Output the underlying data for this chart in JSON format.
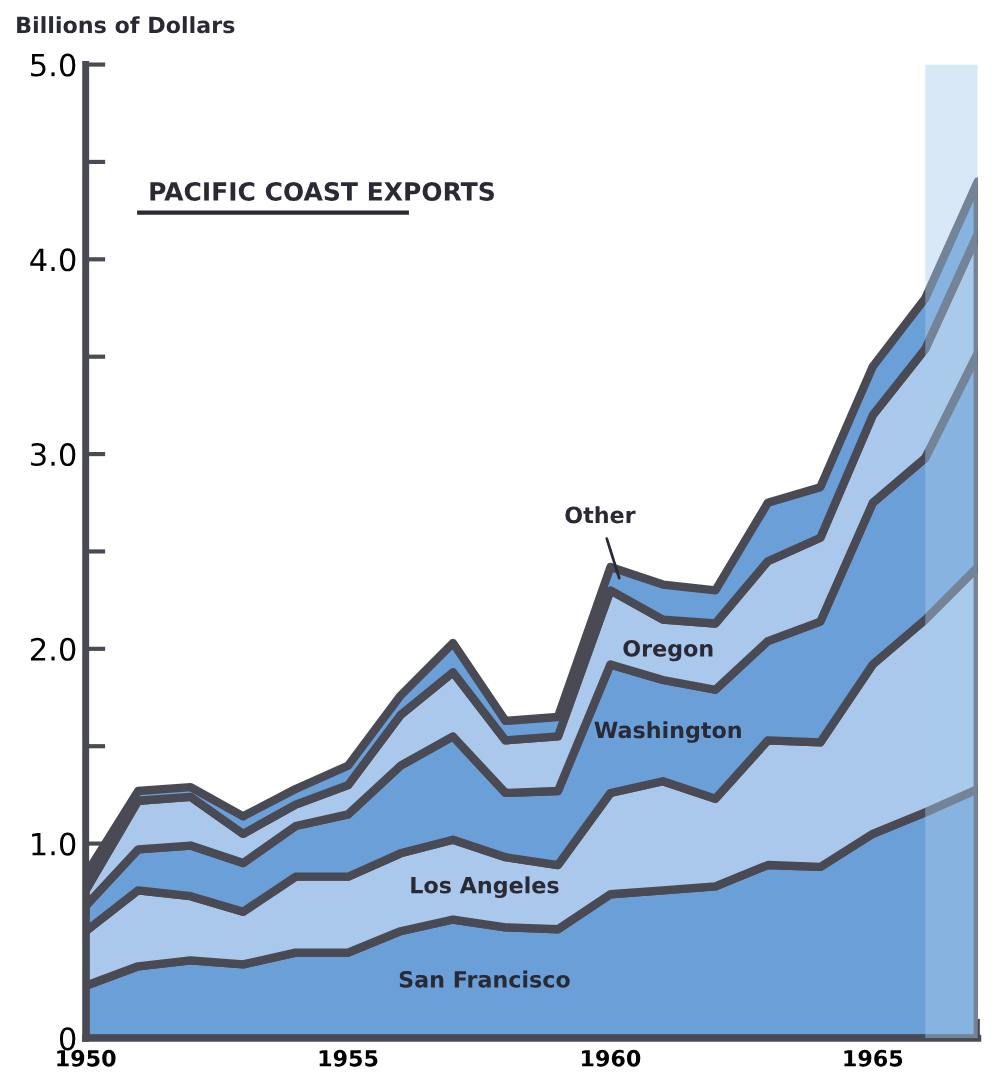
{
  "chart_data": {
    "type": "area",
    "stacked": true,
    "title": "PACIFIC COAST EXPORTS",
    "ylabel": "Billions of Dollars",
    "x": [
      1950,
      1951,
      1952,
      1953,
      1954,
      1955,
      1956,
      1957,
      1958,
      1959,
      1960,
      1961,
      1962,
      1963,
      1964,
      1965,
      1966,
      1967
    ],
    "series": [
      {
        "name": "San Francisco",
        "color": "#6a9fd8",
        "values": [
          0.27,
          0.37,
          0.4,
          0.38,
          0.44,
          0.44,
          0.55,
          0.61,
          0.57,
          0.56,
          0.74,
          0.76,
          0.78,
          0.89,
          0.88,
          1.05,
          1.16,
          1.28
        ]
      },
      {
        "name": "Los Angeles",
        "color": "#a9c8ec",
        "values": [
          0.28,
          0.39,
          0.33,
          0.27,
          0.39,
          0.39,
          0.4,
          0.41,
          0.36,
          0.33,
          0.52,
          0.56,
          0.45,
          0.64,
          0.64,
          0.87,
          0.99,
          1.14
        ]
      },
      {
        "name": "Washington",
        "color": "#6a9fd8",
        "values": [
          0.13,
          0.21,
          0.26,
          0.25,
          0.26,
          0.32,
          0.45,
          0.53,
          0.33,
          0.38,
          0.66,
          0.52,
          0.56,
          0.51,
          0.62,
          0.83,
          0.83,
          1.1
        ]
      },
      {
        "name": "Oregon",
        "color": "#a9c8ec",
        "values": [
          0.08,
          0.25,
          0.25,
          0.15,
          0.11,
          0.15,
          0.26,
          0.33,
          0.27,
          0.28,
          0.38,
          0.31,
          0.34,
          0.41,
          0.43,
          0.45,
          0.56,
          0.61
        ]
      },
      {
        "name": "Other",
        "color": "#6a9fd8",
        "values": [
          0.08,
          0.05,
          0.05,
          0.09,
          0.08,
          0.1,
          0.1,
          0.15,
          0.1,
          0.1,
          0.12,
          0.18,
          0.17,
          0.3,
          0.26,
          0.25,
          0.26,
          0.27
        ]
      }
    ],
    "xlim": [
      1950,
      1967
    ],
    "ylim": [
      0,
      5.0
    ],
    "xticks": [
      1950,
      {
        "value": 1951,
        "label": null
      },
      {
        "value": 1952,
        "label": null
      },
      {
        "value": 1953,
        "label": null
      },
      {
        "value": 1954,
        "label": null
      },
      1955,
      {
        "value": 1956,
        "label": null
      },
      {
        "value": 1957,
        "label": null
      },
      {
        "value": 1958,
        "label": null
      },
      {
        "value": 1959,
        "label": null
      },
      1960,
      {
        "value": 1961,
        "label": null
      },
      {
        "value": 1962,
        "label": null
      },
      {
        "value": 1963,
        "label": null
      },
      {
        "value": 1964,
        "label": null
      },
      1965,
      {
        "value": 1966,
        "label": null
      },
      {
        "value": 1967,
        "label": null
      }
    ],
    "yticks": [
      0,
      {
        "value": 0.5,
        "label": null
      },
      {
        "value": 1.0,
        "label": "1.0"
      },
      {
        "value": 1.5,
        "label": null
      },
      {
        "value": 2.0,
        "label": "2.0"
      },
      {
        "value": 2.5,
        "label": null
      },
      {
        "value": 3.0,
        "label": "3.0"
      },
      {
        "value": 3.5,
        "label": null
      },
      {
        "value": 4.0,
        "label": "4.0"
      },
      {
        "value": 4.5,
        "label": null
      },
      {
        "value": 5.0,
        "label": "5.0"
      }
    ],
    "bands": [
      {
        "axis": "x",
        "from": 1966,
        "to": 1967,
        "label": null,
        "color": "#a8cdea"
      }
    ],
    "grid": false,
    "legend": false
  }
}
